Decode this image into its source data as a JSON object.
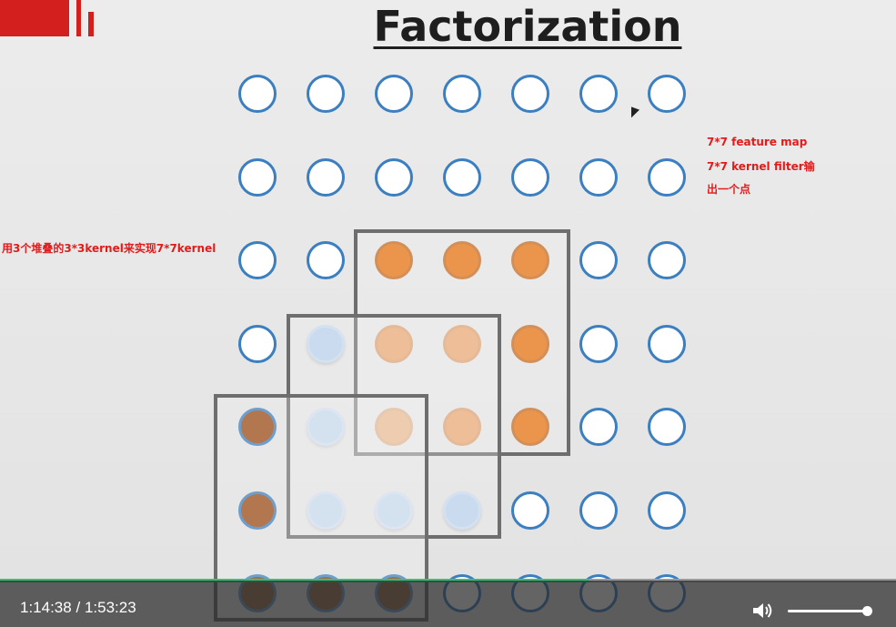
{
  "slide": {
    "title": "Factorization",
    "annotations": {
      "left_note": "用3个堆叠的3*3kernel来实现7*7kernel",
      "right_line1": "7*7 feature map",
      "right_line2": "7*7 kernel filter输",
      "right_line3": "出一个点"
    },
    "grid": {
      "rows": 7,
      "cols": 7,
      "colors": {
        "ring": "#3b7fc0",
        "white": "#ffffff",
        "light_blue": "#bcd3ef",
        "orange": "#e8720c",
        "light_orange": "#ea9146",
        "brown": "#9a4910"
      },
      "cells": [
        [
          "white",
          "white",
          "white",
          "white",
          "white",
          "white",
          "white"
        ],
        [
          "white",
          "white",
          "white",
          "white",
          "white",
          "white",
          "white"
        ],
        [
          "white",
          "white",
          "orange",
          "orange",
          "orange",
          "white",
          "white"
        ],
        [
          "white",
          "lightblue",
          "orange-light",
          "orange-light",
          "orange",
          "white",
          "white"
        ],
        [
          "brown",
          "lightblue",
          "orange-light",
          "orange-light",
          "orange",
          "white",
          "white"
        ],
        [
          "brown",
          "lightblue",
          "lightblue",
          "lightblue",
          "white",
          "white",
          "white"
        ],
        [
          "brown-dark",
          "brown-dark",
          "brown-dark",
          "white",
          "white",
          "white",
          "white"
        ]
      ]
    }
  },
  "player": {
    "time_current": "1:14:38",
    "time_separator": "/",
    "time_total": "1:53:23",
    "progress_fraction": 0.658,
    "volume_fraction": 0.96,
    "icons": {
      "volume": "speaker-icon"
    }
  }
}
